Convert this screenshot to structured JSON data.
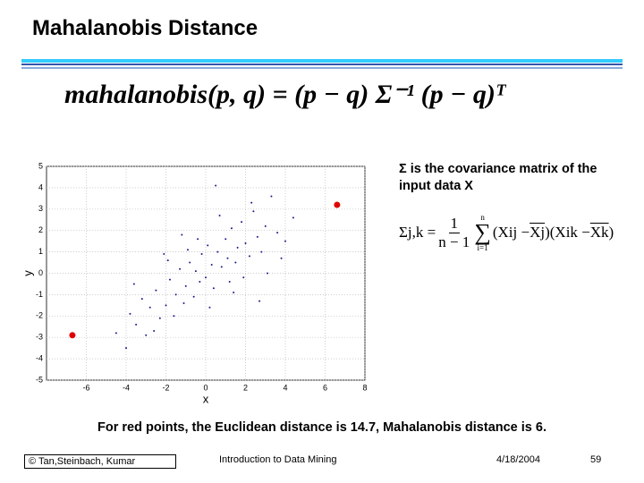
{
  "header": {
    "title": "Mahalanobis Distance"
  },
  "formula": "mahalanobis(p, q) = (p − q) Σ⁻¹ (p − q)ᵀ",
  "sigma_note": "Σ is the covariance matrix of the input data X",
  "covariance": {
    "lhs": "Σj,k =",
    "numerator": "1",
    "denominator": "n − 1",
    "sum_top": "n",
    "sum_bottom": "i=1",
    "terms": "(Xij − ",
    "mean_j": "Xj",
    "middle": ")(Xik − ",
    "mean_k": "Xk",
    "close": ")"
  },
  "chart_data": {
    "type": "scatter",
    "xlabel": "x",
    "ylabel": "y",
    "xlim": [
      -8,
      8
    ],
    "ylim": [
      -5,
      5
    ],
    "xticks": [
      -6,
      -4,
      -2,
      0,
      2,
      4,
      6,
      8
    ],
    "yticks": [
      -5,
      -4,
      -3,
      -2,
      -1,
      0,
      1,
      2,
      3,
      4,
      5
    ],
    "grid": true,
    "color": "#1a1a8c",
    "x": [
      -4.5,
      -4,
      -3.8,
      -3.5,
      -3.2,
      -3,
      -2.8,
      -2.5,
      -2.3,
      -2,
      -1.8,
      -1.6,
      -1.5,
      -1.3,
      -1.1,
      -1,
      -0.8,
      -0.6,
      -0.5,
      -0.3,
      -0.2,
      0,
      0.1,
      0.3,
      0.4,
      0.6,
      0.8,
      1,
      1.1,
      1.3,
      1.5,
      1.6,
      1.8,
      2,
      2.2,
      2.4,
      2.6,
      2.8,
      3,
      3.3,
      3.6,
      4,
      4.4,
      -3.6,
      -2.6,
      -1.9,
      -0.9,
      0.2,
      1.2,
      2.3,
      3.1,
      -1.2,
      0.7,
      1.9,
      -2.1,
      2.7,
      0.5,
      -0.4,
      1.4,
      3.8
    ],
    "y": [
      -2.8,
      -3.5,
      -1.9,
      -2.4,
      -1.2,
      -2.9,
      -1.6,
      -0.8,
      -2.1,
      -1.5,
      -0.3,
      -2.0,
      -1.0,
      0.2,
      -1.4,
      -0.6,
      0.5,
      -1.1,
      0.1,
      -0.4,
      0.9,
      -0.2,
      1.3,
      0.4,
      -0.7,
      1.0,
      0.3,
      1.6,
      0.7,
      2.1,
      0.5,
      1.2,
      2.4,
      1.4,
      0.8,
      2.9,
      1.7,
      1.0,
      2.2,
      3.6,
      1.9,
      1.5,
      2.6,
      -0.5,
      -2.7,
      0.6,
      1.1,
      -1.6,
      -0.4,
      3.3,
      0.0,
      1.8,
      2.7,
      -0.2,
      0.9,
      -1.3,
      4.1,
      1.6,
      -0.9,
      0.7
    ],
    "highlight": {
      "color": "#e00000",
      "x": [
        6.6,
        -6.7
      ],
      "y": [
        3.2,
        -2.9
      ]
    }
  },
  "bottom_text": "For red points, the Euclidean distance is 14.7, Mahalanobis distance is 6.",
  "footer": {
    "copyright": "© Tan,Steinbach, Kumar",
    "course": "Introduction to Data Mining",
    "date": "4/18/2004",
    "page": "59"
  }
}
